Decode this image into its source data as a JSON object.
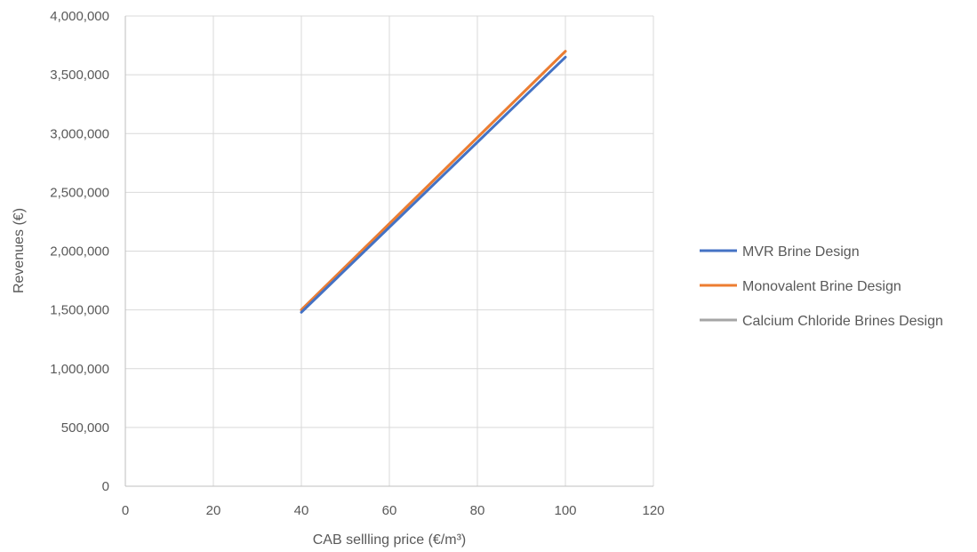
{
  "chart_data": {
    "type": "line",
    "title": "",
    "xlabel": "CAB sellling price (€/m³)",
    "ylabel": "Revenues (€)",
    "xlim": [
      0,
      120
    ],
    "ylim": [
      0,
      4000000
    ],
    "x_ticks": [
      0,
      20,
      40,
      60,
      80,
      100,
      120
    ],
    "y_ticks": [
      0,
      500000,
      1000000,
      1500000,
      2000000,
      2500000,
      3000000,
      3500000,
      4000000
    ],
    "x_tick_labels": [
      "0",
      "20",
      "40",
      "60",
      "80",
      "100",
      "120"
    ],
    "y_tick_labels": [
      "0",
      "500,000",
      "1,000,000",
      "1,500,000",
      "2,000,000",
      "2,500,000",
      "3,000,000",
      "3,500,000",
      "4,000,000"
    ],
    "grid": true,
    "legend_position": "right",
    "series": [
      {
        "name": "MVR Brine Design",
        "color": "#4472C4",
        "x": [
          40,
          100
        ],
        "y": [
          1480000,
          3650000
        ]
      },
      {
        "name": "Monovalent Brine Design",
        "color": "#ED7D31",
        "x": [
          40,
          100
        ],
        "y": [
          1500000,
          3700000
        ]
      },
      {
        "name": "Calcium Chloride Brines Design",
        "color": "#A5A5A5",
        "x": [
          40,
          100
        ],
        "y": [
          1500000,
          3700000
        ]
      }
    ]
  }
}
